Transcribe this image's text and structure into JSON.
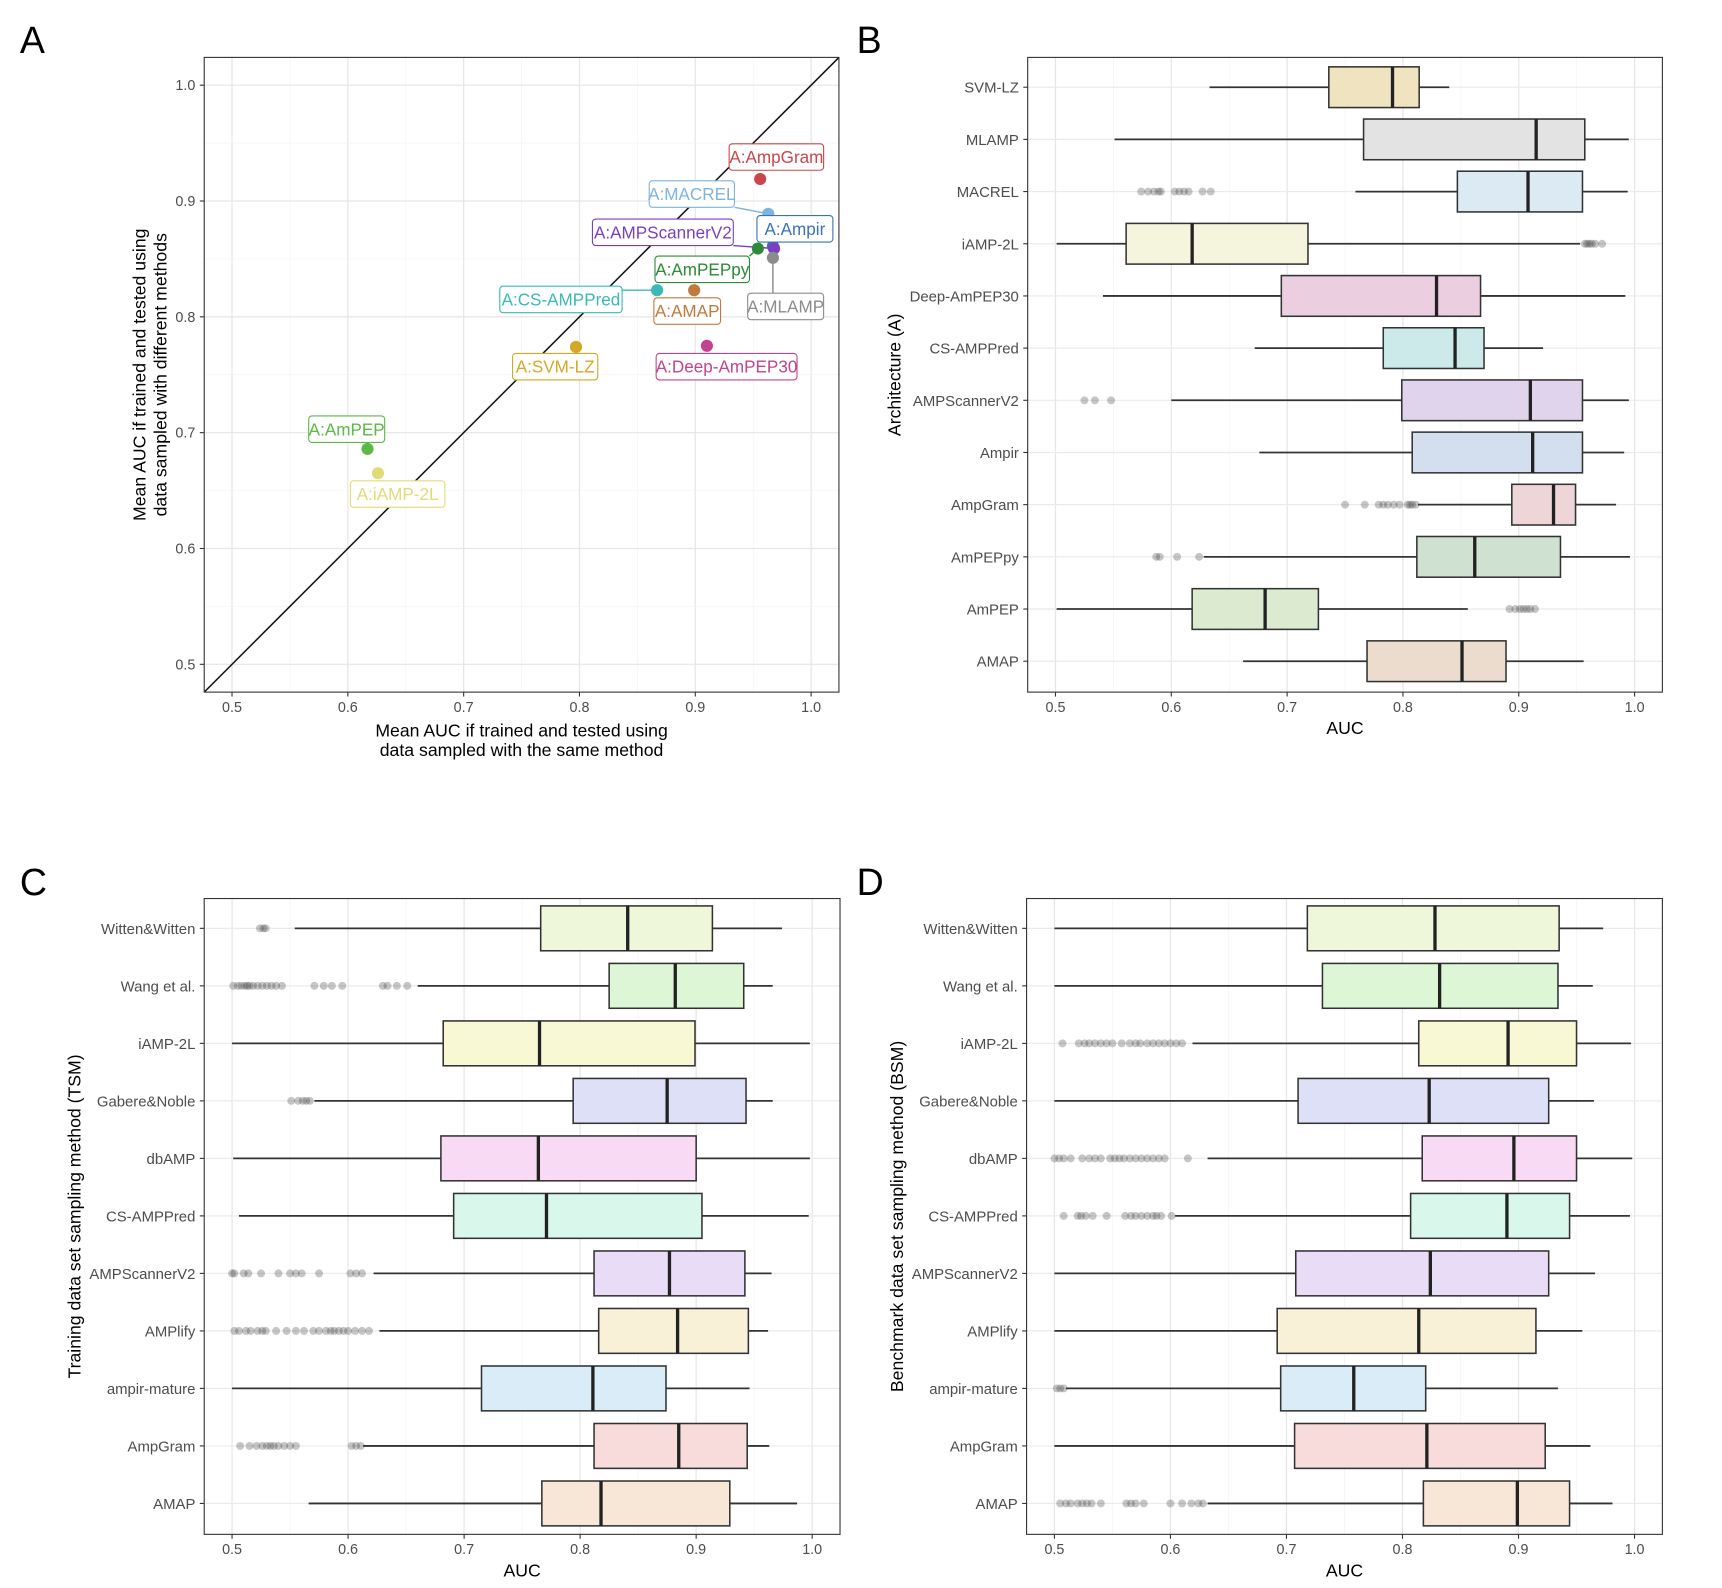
{
  "panels": {
    "a": "A",
    "b": "B",
    "c": "C",
    "d": "D"
  },
  "chart_data": [
    {
      "panel": "A",
      "type": "scatter",
      "xlabel": [
        "Mean AUC if trained and tested using",
        "data sampled with the same method"
      ],
      "ylabel": [
        "Mean AUC if trained and tested using",
        "data sampled with different methods"
      ],
      "xlim": [
        0.476,
        1.024
      ],
      "ylim": [
        0.476,
        1.024
      ],
      "xticks": [
        "0.5",
        "0.6",
        "0.7",
        "0.8",
        "0.9",
        "1.0"
      ],
      "yticks": [
        "0.5",
        "0.6",
        "0.7",
        "0.8",
        "0.9",
        "1.0"
      ],
      "reference_line": "y = x",
      "grid": true,
      "points": [
        {
          "label": "A:AmpGram",
          "x": 0.956,
          "y": 0.919,
          "color": "#c9474b"
        },
        {
          "label": "A:MACREL",
          "x": 0.963,
          "y": 0.889,
          "color": "#7fb4e0"
        },
        {
          "label": "A:Ampir",
          "x": 0.967,
          "y": 0.861,
          "color": "#3a72b8"
        },
        {
          "label": "A:AMPScannerV2",
          "x": 0.968,
          "y": 0.859,
          "color": "#7b3fbf"
        },
        {
          "label": "A:AmPEPpy",
          "x": 0.954,
          "y": 0.859,
          "color": "#2c8a3a"
        },
        {
          "label": "A:MLAMP",
          "x": 0.967,
          "y": 0.851,
          "color": "#8c8c8c"
        },
        {
          "label": "A:CS-AMPPred",
          "x": 0.867,
          "y": 0.823,
          "color": "#3bb8b8"
        },
        {
          "label": "A:AMAP",
          "x": 0.899,
          "y": 0.823,
          "color": "#c07a3e"
        },
        {
          "label": "A:SVM-LZ",
          "x": 0.797,
          "y": 0.774,
          "color": "#d4a825"
        },
        {
          "label": "A:Deep-AmPEP30",
          "x": 0.91,
          "y": 0.775,
          "color": "#c2448c"
        },
        {
          "label": "A:AmPEP",
          "x": 0.617,
          "y": 0.686,
          "color": "#5cb847"
        },
        {
          "label": "A:iAMP-2L",
          "x": 0.626,
          "y": 0.665,
          "color": "#e0dc78"
        }
      ]
    },
    {
      "panel": "B",
      "type": "box",
      "orientation": "horizontal",
      "xlabel": "AUC",
      "ylabel": "Architecture (A)",
      "xlim": [
        0.476,
        1.024
      ],
      "xticks": [
        "0.5",
        "0.6",
        "0.7",
        "0.8",
        "0.9",
        "1.0"
      ],
      "grid": true,
      "boxes": [
        {
          "name": "SVM-LZ",
          "min": 0.633,
          "q1": 0.736,
          "median": 0.791,
          "q3": 0.814,
          "max": 0.84,
          "fill": "#efe3c0",
          "outliers": []
        },
        {
          "name": "MLAMP",
          "min": 0.551,
          "q1": 0.766,
          "median": 0.915,
          "q3": 0.957,
          "max": 0.995,
          "fill": "#e3e3e3",
          "outliers": []
        },
        {
          "name": "MACREL",
          "min": 0.759,
          "q1": 0.847,
          "median": 0.908,
          "q3": 0.955,
          "max": 0.994,
          "fill": "#dceaf4",
          "outliers": [
            0.574,
            0.58,
            0.585,
            0.589,
            0.591,
            0.603,
            0.607,
            0.611,
            0.615,
            0.627,
            0.634
          ]
        },
        {
          "name": "iAMP-2L",
          "min": 0.501,
          "q1": 0.561,
          "median": 0.618,
          "q3": 0.718,
          "max": 0.953,
          "fill": "#f5f4dc",
          "outliers": [
            0.957,
            0.959,
            0.961,
            0.963,
            0.966,
            0.972
          ]
        },
        {
          "name": "Deep-AmPEP30",
          "min": 0.541,
          "q1": 0.695,
          "median": 0.829,
          "q3": 0.867,
          "max": 0.992,
          "fill": "#ebcfe0",
          "outliers": []
        },
        {
          "name": "CS-AMPPred",
          "min": 0.672,
          "q1": 0.783,
          "median": 0.845,
          "q3": 0.87,
          "max": 0.921,
          "fill": "#cdeaea",
          "outliers": []
        },
        {
          "name": "AMPScannerV2",
          "min": 0.6,
          "q1": 0.799,
          "median": 0.91,
          "q3": 0.955,
          "max": 0.995,
          "fill": "#e0d3ec",
          "outliers": [
            0.525,
            0.534,
            0.548
          ]
        },
        {
          "name": "Ampir",
          "min": 0.676,
          "q1": 0.808,
          "median": 0.912,
          "q3": 0.955,
          "max": 0.991,
          "fill": "#d3dfee",
          "outliers": []
        },
        {
          "name": "AmpGram",
          "min": 0.813,
          "q1": 0.894,
          "median": 0.93,
          "q3": 0.949,
          "max": 0.984,
          "fill": "#eed6d8",
          "outliers": [
            0.75,
            0.767,
            0.779,
            0.783,
            0.787,
            0.792,
            0.797,
            0.804,
            0.806,
            0.808,
            0.811
          ]
        },
        {
          "name": "AmPEPpy",
          "min": 0.628,
          "q1": 0.812,
          "median": 0.862,
          "q3": 0.936,
          "max": 0.996,
          "fill": "#cfe2d2",
          "outliers": [
            0.587,
            0.59,
            0.605,
            0.624
          ]
        },
        {
          "name": "AmPEP",
          "min": 0.501,
          "q1": 0.618,
          "median": 0.681,
          "q3": 0.727,
          "max": 0.856,
          "fill": "#dcebd0",
          "outliers": [
            0.892,
            0.897,
            0.901,
            0.904,
            0.907,
            0.91,
            0.914
          ]
        },
        {
          "name": "AMAP",
          "min": 0.662,
          "q1": 0.769,
          "median": 0.851,
          "q3": 0.889,
          "max": 0.956,
          "fill": "#ecdccd",
          "outliers": []
        }
      ]
    },
    {
      "panel": "C",
      "type": "box",
      "orientation": "horizontal",
      "xlabel": "AUC",
      "ylabel": "Training data set sampling method (TSM)",
      "xlim": [
        0.476,
        1.024
      ],
      "xticks": [
        "0.5",
        "0.6",
        "0.7",
        "0.8",
        "0.9",
        "1.0"
      ],
      "grid": true,
      "boxes": [
        {
          "name": "Witten&Witten",
          "min": 0.554,
          "q1": 0.766,
          "median": 0.841,
          "q3": 0.914,
          "max": 0.974,
          "fill": "#eef7d9",
          "outliers": [
            0.524,
            0.527,
            0.529
          ]
        },
        {
          "name": "Wang et al.",
          "min": 0.66,
          "q1": 0.825,
          "median": 0.882,
          "q3": 0.941,
          "max": 0.966,
          "fill": "#ddf7d6",
          "outliers": [
            0.501,
            0.505,
            0.508,
            0.511,
            0.513,
            0.515,
            0.518,
            0.522,
            0.526,
            0.53,
            0.534,
            0.538,
            0.543,
            0.571,
            0.579,
            0.586,
            0.595,
            0.63,
            0.634,
            0.642,
            0.651
          ]
        },
        {
          "name": "iAMP-2L",
          "min": 0.5,
          "q1": 0.682,
          "median": 0.765,
          "q3": 0.899,
          "max": 0.998,
          "fill": "#f8f8d4",
          "outliers": []
        },
        {
          "name": "Gabere&Noble",
          "min": 0.571,
          "q1": 0.794,
          "median": 0.875,
          "q3": 0.943,
          "max": 0.966,
          "fill": "#dde0f7",
          "outliers": [
            0.551,
            0.557,
            0.561,
            0.564,
            0.567
          ]
        },
        {
          "name": "dbAMP",
          "min": 0.501,
          "q1": 0.68,
          "median": 0.764,
          "q3": 0.9,
          "max": 0.998,
          "fill": "#f8daf5",
          "outliers": []
        },
        {
          "name": "CS-AMPPred",
          "min": 0.506,
          "q1": 0.691,
          "median": 0.771,
          "q3": 0.905,
          "max": 0.997,
          "fill": "#d9f7ea",
          "outliers": []
        },
        {
          "name": "AMPScannerV2",
          "min": 0.622,
          "q1": 0.812,
          "median": 0.877,
          "q3": 0.942,
          "max": 0.965,
          "fill": "#e8dcf7",
          "outliers": [
            0.5,
            0.502,
            0.51,
            0.514,
            0.525,
            0.54,
            0.55,
            0.555,
            0.56,
            0.575,
            0.602,
            0.607,
            0.612
          ]
        },
        {
          "name": "AMPlify",
          "min": 0.627,
          "q1": 0.816,
          "median": 0.884,
          "q3": 0.945,
          "max": 0.962,
          "fill": "#f8f1d8",
          "outliers": [
            0.502,
            0.506,
            0.512,
            0.516,
            0.522,
            0.526,
            0.529,
            0.538,
            0.547,
            0.555,
            0.562,
            0.57,
            0.575,
            0.581,
            0.585,
            0.588,
            0.592,
            0.596,
            0.6,
            0.606,
            0.612,
            0.618
          ]
        },
        {
          "name": "ampir-mature",
          "min": 0.5,
          "q1": 0.715,
          "median": 0.811,
          "q3": 0.874,
          "max": 0.946,
          "fill": "#d9ecf8",
          "outliers": []
        },
        {
          "name": "AmpGram",
          "min": 0.613,
          "q1": 0.812,
          "median": 0.885,
          "q3": 0.944,
          "max": 0.963,
          "fill": "#f8dbdb",
          "outliers": [
            0.507,
            0.515,
            0.521,
            0.526,
            0.53,
            0.533,
            0.536,
            0.54,
            0.545,
            0.55,
            0.555,
            0.603,
            0.607,
            0.611
          ]
        },
        {
          "name": "AMAP",
          "min": 0.566,
          "q1": 0.767,
          "median": 0.818,
          "q3": 0.929,
          "max": 0.987,
          "fill": "#f8e6d6",
          "outliers": []
        }
      ]
    },
    {
      "panel": "D",
      "type": "box",
      "orientation": "horizontal",
      "xlabel": "AUC",
      "ylabel": "Benchmark data set sampling method (BSM)",
      "xlim": [
        0.476,
        1.024
      ],
      "xticks": [
        "0.5",
        "0.6",
        "0.7",
        "0.8",
        "0.9",
        "1.0"
      ],
      "grid": true,
      "boxes": [
        {
          "name": "Witten&Witten",
          "min": 0.5,
          "q1": 0.718,
          "median": 0.828,
          "q3": 0.935,
          "max": 0.973,
          "fill": "#eef7d9",
          "outliers": []
        },
        {
          "name": "Wang et al.",
          "min": 0.5,
          "q1": 0.731,
          "median": 0.832,
          "q3": 0.934,
          "max": 0.964,
          "fill": "#ddf7d6",
          "outliers": []
        },
        {
          "name": "iAMP-2L",
          "min": 0.619,
          "q1": 0.814,
          "median": 0.891,
          "q3": 0.95,
          "max": 0.997,
          "fill": "#f8f8d4",
          "outliers": [
            0.507,
            0.521,
            0.526,
            0.53,
            0.535,
            0.54,
            0.545,
            0.55,
            0.558,
            0.565,
            0.57,
            0.574,
            0.58,
            0.585,
            0.59,
            0.595,
            0.6,
            0.605,
            0.61
          ]
        },
        {
          "name": "Gabere&Noble",
          "min": 0.5,
          "q1": 0.71,
          "median": 0.823,
          "q3": 0.926,
          "max": 0.965,
          "fill": "#dde0f7",
          "outliers": []
        },
        {
          "name": "dbAMP",
          "min": 0.632,
          "q1": 0.817,
          "median": 0.896,
          "q3": 0.95,
          "max": 0.998,
          "fill": "#f8daf5",
          "outliers": [
            0.5,
            0.504,
            0.508,
            0.514,
            0.524,
            0.53,
            0.535,
            0.54,
            0.548,
            0.552,
            0.556,
            0.56,
            0.565,
            0.57,
            0.575,
            0.58,
            0.585,
            0.59,
            0.595,
            0.615
          ]
        },
        {
          "name": "CS-AMPPred",
          "min": 0.604,
          "q1": 0.807,
          "median": 0.89,
          "q3": 0.944,
          "max": 0.996,
          "fill": "#d9f7ea",
          "outliers": [
            0.508,
            0.52,
            0.523,
            0.527,
            0.533,
            0.545,
            0.561,
            0.566,
            0.57,
            0.575,
            0.58,
            0.585,
            0.588,
            0.592,
            0.601
          ]
        },
        {
          "name": "AMPScannerV2",
          "min": 0.5,
          "q1": 0.708,
          "median": 0.824,
          "q3": 0.926,
          "max": 0.966,
          "fill": "#e8dcf7",
          "outliers": []
        },
        {
          "name": "AMPlify",
          "min": 0.5,
          "q1": 0.692,
          "median": 0.814,
          "q3": 0.915,
          "max": 0.955,
          "fill": "#f8f1d8",
          "outliers": []
        },
        {
          "name": "ampir-mature",
          "min": 0.51,
          "q1": 0.695,
          "median": 0.758,
          "q3": 0.82,
          "max": 0.934,
          "fill": "#d9ecf8",
          "outliers": [
            0.502,
            0.505,
            0.508
          ]
        },
        {
          "name": "AmpGram",
          "min": 0.5,
          "q1": 0.707,
          "median": 0.821,
          "q3": 0.923,
          "max": 0.962,
          "fill": "#f8dbdb",
          "outliers": []
        },
        {
          "name": "AMAP",
          "min": 0.632,
          "q1": 0.818,
          "median": 0.899,
          "q3": 0.944,
          "max": 0.981,
          "fill": "#f8e6d6",
          "outliers": [
            0.505,
            0.51,
            0.514,
            0.52,
            0.524,
            0.528,
            0.532,
            0.54,
            0.562,
            0.566,
            0.57,
            0.577,
            0.6,
            0.61,
            0.618,
            0.624,
            0.628
          ]
        }
      ]
    }
  ]
}
